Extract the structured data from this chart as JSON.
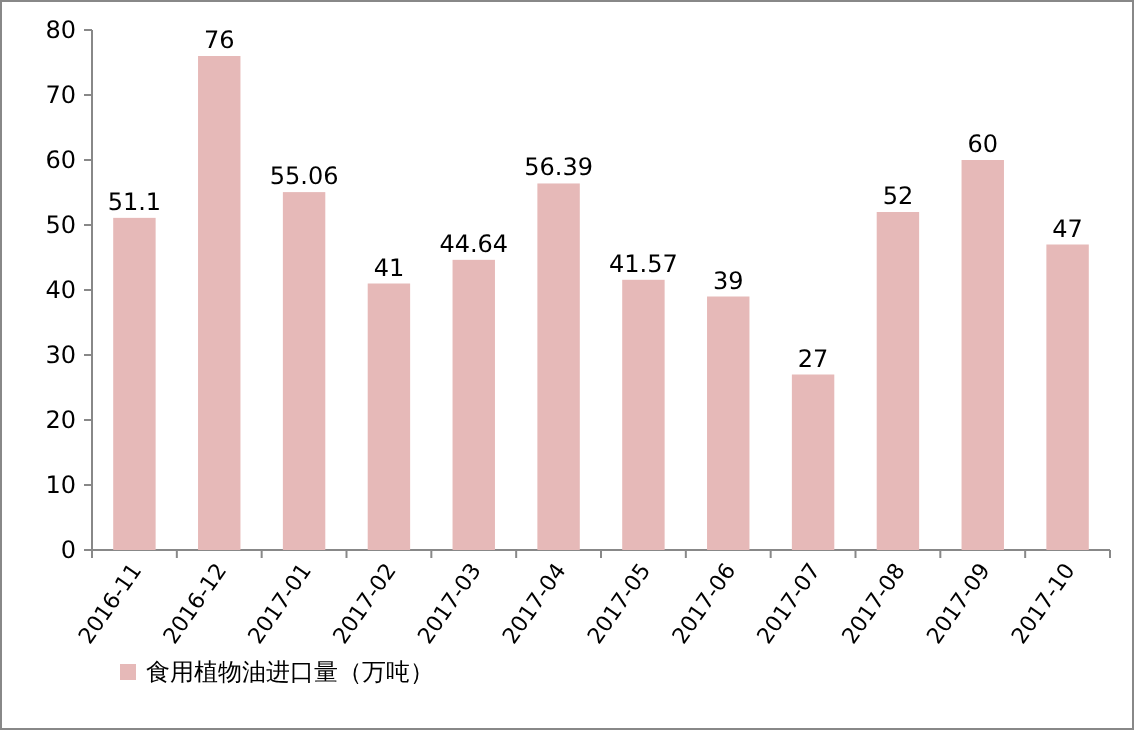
{
  "chart_data": {
    "type": "bar",
    "categories": [
      "2016-11",
      "2016-12",
      "2017-01",
      "2017-02",
      "2017-03",
      "2017-04",
      "2017-05",
      "2017-06",
      "2017-07",
      "2017-08",
      "2017-09",
      "2017-10"
    ],
    "series": [
      {
        "name": "食用植物油进口量（万吨）",
        "color": "#e6b9b8",
        "values": [
          51.1,
          76,
          55.06,
          41,
          44.64,
          56.39,
          41.57,
          39,
          27,
          52,
          60,
          47
        ]
      }
    ],
    "ylim": [
      0,
      80
    ],
    "yticks": [
      0,
      10,
      20,
      30,
      40,
      50,
      60,
      70,
      80
    ],
    "data_labels": true,
    "legend": "bottom",
    "grid": false
  }
}
